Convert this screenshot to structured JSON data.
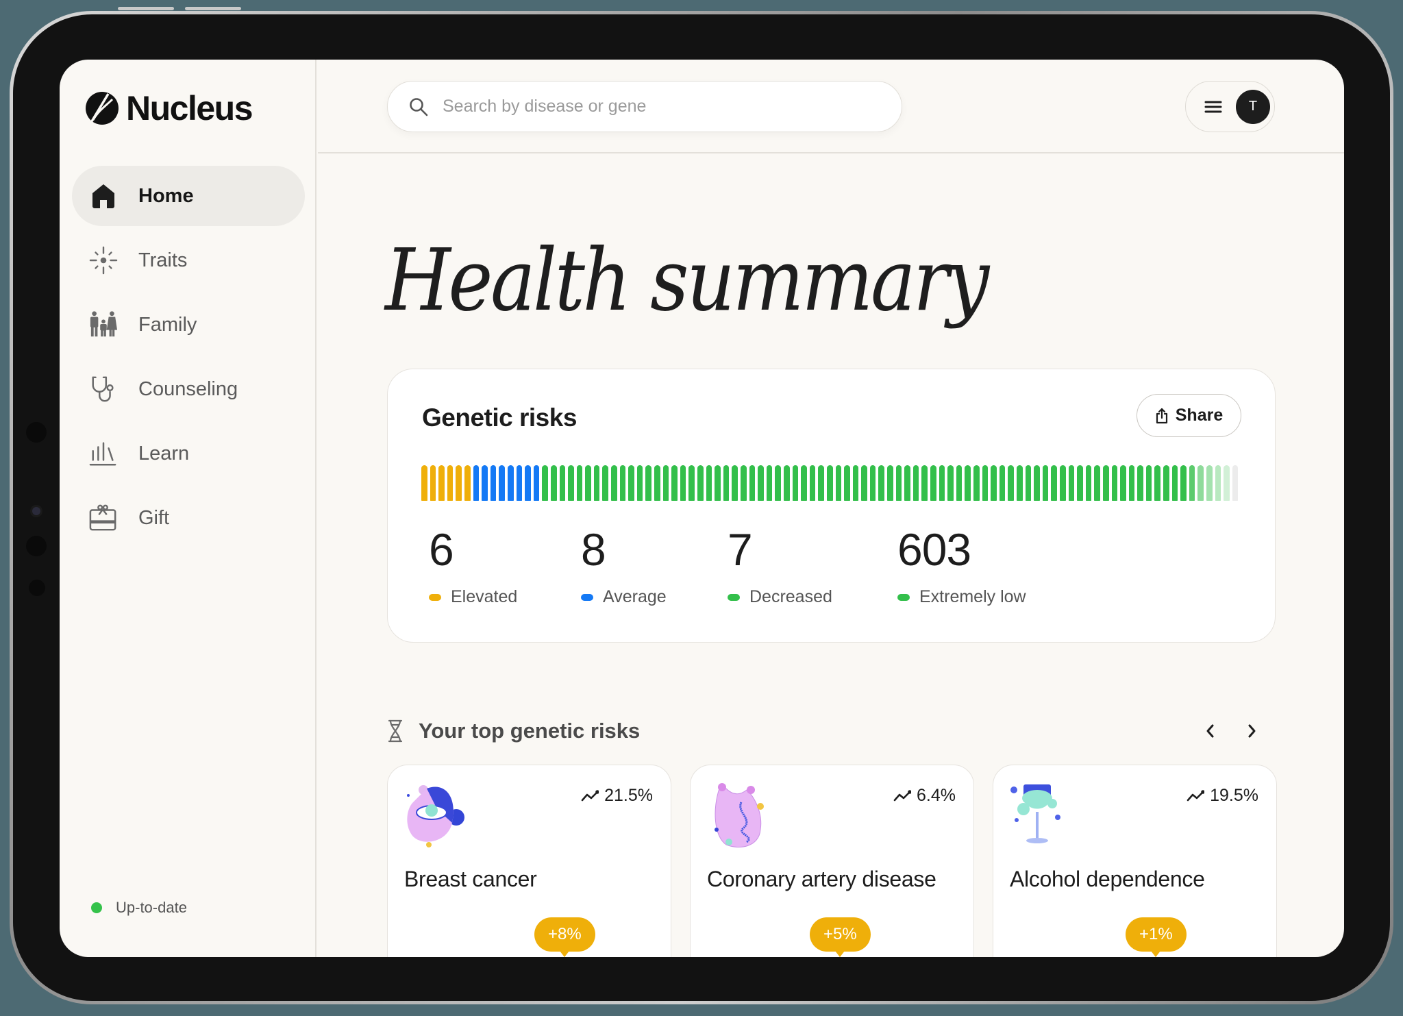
{
  "app": {
    "name": "Nucleus"
  },
  "sidebar": {
    "items": [
      {
        "label": "Home",
        "icon": "home-icon",
        "active": true
      },
      {
        "label": "Traits",
        "icon": "sparkle-icon",
        "active": false
      },
      {
        "label": "Family",
        "icon": "family-icon",
        "active": false
      },
      {
        "label": "Counseling",
        "icon": "stethoscope-icon",
        "active": false
      },
      {
        "label": "Learn",
        "icon": "learn-icon",
        "active": false
      },
      {
        "label": "Gift",
        "icon": "gift-icon",
        "active": false
      }
    ],
    "status": {
      "label": "Up-to-date",
      "color": "#34c24a"
    }
  },
  "header": {
    "search": {
      "placeholder": "Search by disease or gene",
      "value": ""
    },
    "menu_icon": "hamburger-icon",
    "avatar_initial": "T"
  },
  "page": {
    "title": "Health summary"
  },
  "genetic_risks": {
    "title": "Genetic risks",
    "share_label": "Share",
    "bar_segments": [
      {
        "color": "#efaf0a",
        "count": 6
      },
      {
        "color": "#1479f5",
        "count": 8
      },
      {
        "color": "#33bf4b",
        "count": 75
      },
      {
        "color": "#5ccb6d",
        "count": 1
      },
      {
        "color": "#8fdb9b",
        "count": 1
      },
      {
        "color": "#a4e2ae",
        "count": 1
      },
      {
        "color": "#b9e9c0",
        "count": 1
      },
      {
        "color": "#d2f0d7",
        "count": 1
      },
      {
        "color": "#ececec",
        "count": 1
      }
    ],
    "stats": [
      {
        "value": "6",
        "label": "Elevated",
        "color": "#efaf0a"
      },
      {
        "value": "8",
        "label": "Average",
        "color": "#1479f5"
      },
      {
        "value": "7",
        "label": "Decreased",
        "color": "#33bf4b"
      },
      {
        "value": "603",
        "label": "Extremely low",
        "color": "#33bf4b"
      }
    ],
    "colors": {
      "elevated": "#efaf0a",
      "average": "#1479f5",
      "low": "#33bf4b"
    }
  },
  "top_risks": {
    "title": "Your top genetic risks",
    "prev_label": "‹",
    "next_label": "›",
    "cards": [
      {
        "name": "Breast cancer",
        "trend": "21.5%",
        "badge": "+8%",
        "illustration": "breast-cancer-illustration"
      },
      {
        "name": "Coronary artery disease",
        "trend": "6.4%",
        "badge": "+5%",
        "illustration": "heart-illustration"
      },
      {
        "name": "Alcohol dependence",
        "trend": "19.5%",
        "badge": "+1%",
        "illustration": "wine-glass-illustration"
      }
    ]
  }
}
